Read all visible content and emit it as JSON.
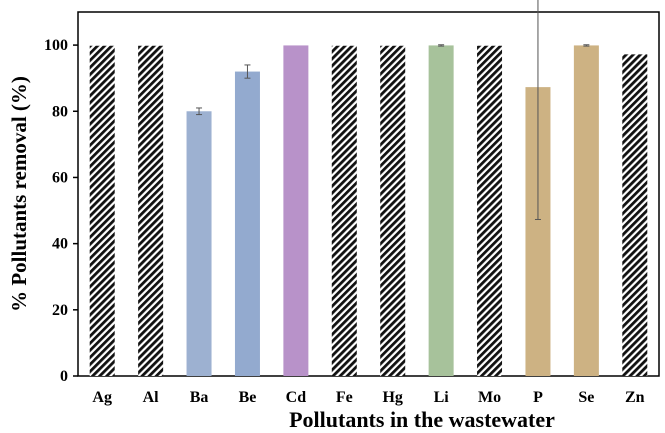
{
  "chart_data": {
    "type": "bar",
    "xlabel": "Pollutants in the wastewater",
    "ylabel": "% Pollutants removal (%)",
    "ylim": [
      0,
      110
    ],
    "yticks": [
      0,
      20,
      40,
      60,
      80,
      100
    ],
    "grid": false,
    "categories": [
      "Ag",
      "Al",
      "Ba",
      "Be",
      "Cd",
      "Fe",
      "Hg",
      "Li",
      "Mo",
      "P",
      "Se",
      "Zn"
    ],
    "values": [
      99.8,
      99.8,
      80.0,
      92.0,
      99.9,
      99.8,
      99.8,
      99.9,
      99.8,
      87.3,
      99.9,
      97.2
    ],
    "error": [
      null,
      null,
      1.0,
      2.0,
      null,
      null,
      null,
      0.2,
      null,
      40.0,
      0.2,
      null
    ],
    "bar_fills": [
      "hatch",
      "hatch",
      "#9db1d1",
      "#93aacf",
      "#b892c9",
      "hatch",
      "hatch",
      "#a7c29b",
      "hatch",
      "#cdb283",
      "#cdb283",
      "hatch"
    ]
  }
}
